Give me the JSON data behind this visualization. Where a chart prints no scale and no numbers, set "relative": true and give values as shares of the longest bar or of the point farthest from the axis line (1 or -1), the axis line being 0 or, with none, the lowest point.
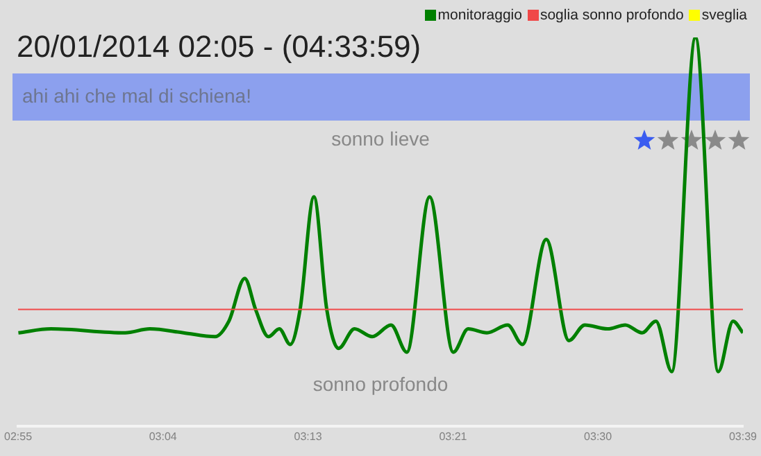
{
  "chart_data": {
    "type": "line",
    "title": "20/01/2014 02:05 - (04:33:59)",
    "relative": true,
    "grid": false,
    "legend": "top right",
    "marker": "none",
    "annotations": [
      "ahi ahi che mal di schiena!",
      "sonno lieve",
      "sonno profondo"
    ],
    "xlim": [
      2.9167,
      3.65
    ],
    "xticks": [
      {
        "value": 2.9167,
        "label": "02:55"
      },
      {
        "value": 3.0633,
        "label": "03:04"
      },
      {
        "value": 3.21,
        "label": "03:13"
      },
      {
        "value": 3.3567,
        "label": "03:21"
      },
      {
        "value": 3.5033,
        "label": "03:30"
      },
      {
        "value": 3.65,
        "label": "03:39"
      }
    ],
    "ref_lines": [
      {
        "axis": "y",
        "value": 0.3,
        "label": "soglia sonno profondo",
        "color": "#f04848"
      }
    ],
    "series": [
      {
        "name": "monitoraggio",
        "color": "#008000",
        "x": [
          2.917,
          2.95,
          3.025,
          3.05,
          3.084,
          3.116,
          3.13,
          3.146,
          3.157,
          3.17,
          3.181,
          3.192,
          3.202,
          3.216,
          3.229,
          3.241,
          3.257,
          3.275,
          3.294,
          3.31,
          3.333,
          3.357,
          3.372,
          3.391,
          3.412,
          3.427,
          3.451,
          3.474,
          3.49,
          3.513,
          3.531,
          3.548,
          3.562,
          3.578,
          3.602,
          3.625,
          3.64,
          3.65
        ],
        "values": [
          0.24,
          0.25,
          0.24,
          0.25,
          0.24,
          0.23,
          0.27,
          0.38,
          0.3,
          0.23,
          0.25,
          0.21,
          0.3,
          0.59,
          0.3,
          0.2,
          0.25,
          0.23,
          0.26,
          0.19,
          0.59,
          0.19,
          0.25,
          0.24,
          0.26,
          0.21,
          0.48,
          0.22,
          0.26,
          0.25,
          0.26,
          0.24,
          0.27,
          0.14,
          1,
          0.14,
          0.27,
          0.24
        ]
      },
      {
        "name": "sveglia",
        "color": "#ffff00"
      }
    ]
  }
}
